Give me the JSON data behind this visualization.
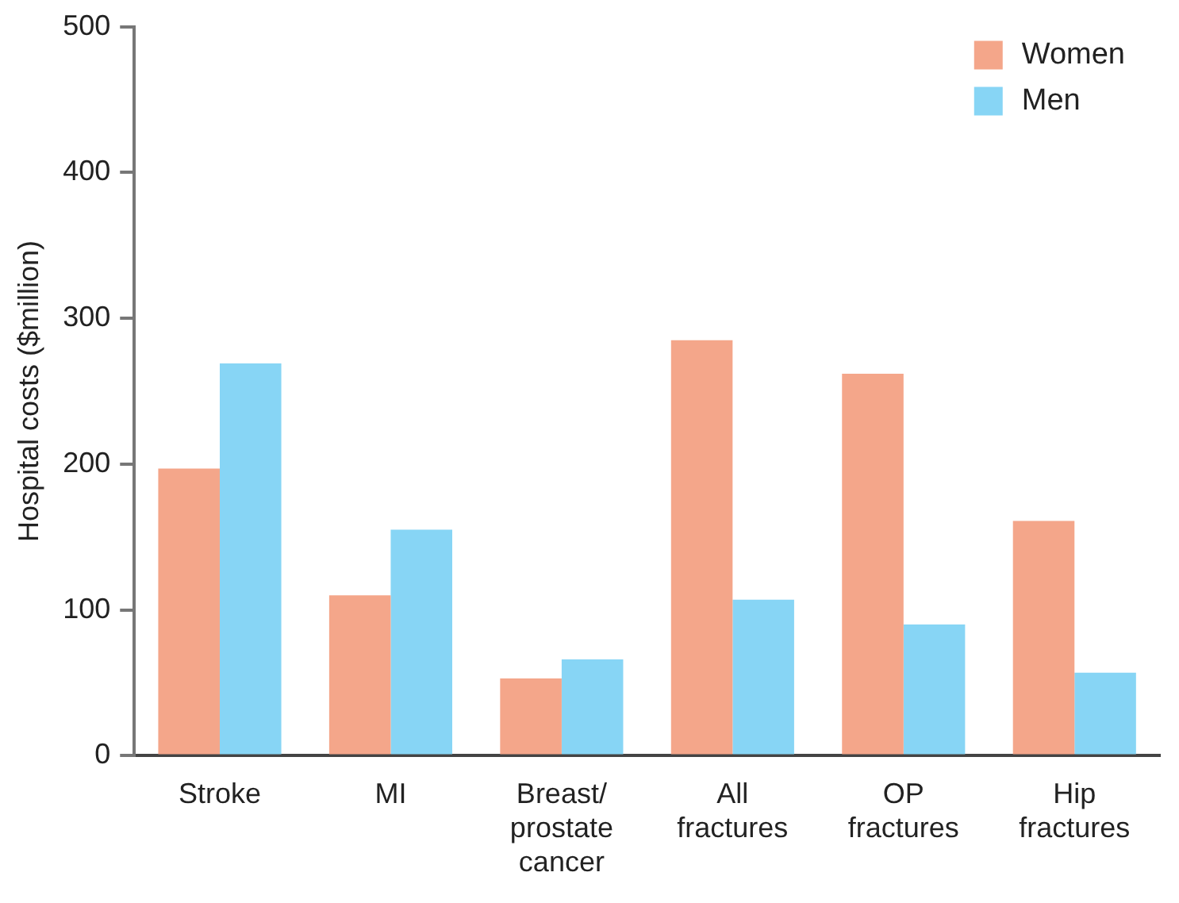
{
  "chart_data": {
    "type": "bar",
    "ylabel": "Hospital costs ($million)",
    "categories": [
      "Stroke",
      "MI",
      "Breast/ prostate cancer",
      "All fractures",
      "OP fractures",
      "Hip fractures"
    ],
    "series": [
      {
        "name": "Women",
        "color": "#f4a68a",
        "values": [
          197,
          110,
          53,
          285,
          262,
          161
        ]
      },
      {
        "name": "Men",
        "color": "#87d5f5",
        "values": [
          269,
          155,
          66,
          107,
          90,
          57
        ]
      }
    ],
    "ylim": [
      0,
      500
    ],
    "yticks": [
      0,
      100,
      200,
      300,
      400,
      500
    ],
    "grid": false,
    "legend": "top right"
  }
}
